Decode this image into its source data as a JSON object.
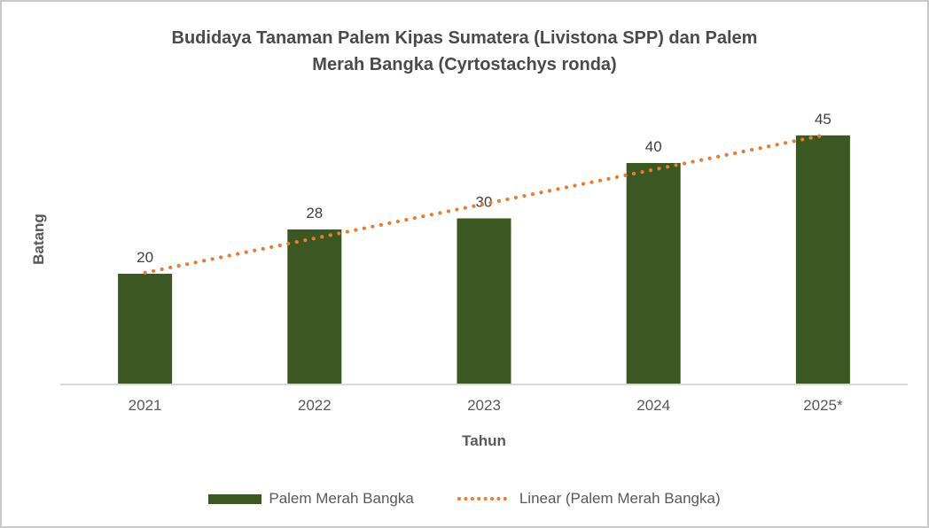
{
  "chart_data": {
    "type": "bar",
    "title": "Budidaya Tanaman Palem Kipas Sumatera (Livistona SPP) dan Palem Merah Bangka (Cyrtostachys ronda)",
    "title_lines": [
      "Budidaya Tanaman Palem Kipas Sumatera (Livistona SPP) dan Palem",
      "Merah Bangka (Cyrtostachys ronda)"
    ],
    "categories": [
      "2021",
      "2022",
      "2023",
      "2024",
      "2025*"
    ],
    "series": [
      {
        "name": "Palem Merah Bangka",
        "values": [
          20,
          28,
          30,
          40,
          45
        ],
        "color": "#3C5822"
      }
    ],
    "data_labels": [
      "20",
      "28",
      "30",
      "40",
      "45"
    ],
    "trendline": {
      "name": "Linear (Palem Merah Bangka)",
      "type": "linear",
      "slope": 6.2,
      "intercept": 14,
      "color": "#E57E35",
      "style": "dotted"
    },
    "xlabel": "Tahun",
    "ylabel": "Batang",
    "ylim": [
      0,
      53
    ],
    "grid": false,
    "legend_position": "bottom",
    "legend": [
      {
        "label": "Palem Merah Bangka",
        "marker": "filled-bar",
        "color": "#3C5822"
      },
      {
        "label": "Linear (Palem Merah Bangka)",
        "marker": "dotted-line",
        "color": "#E57E35"
      }
    ],
    "axis_line_color": "#D9D9D9",
    "text_colors": {
      "title": "#4A4A4A",
      "data_label": "#404040",
      "axis": "#595959"
    }
  }
}
